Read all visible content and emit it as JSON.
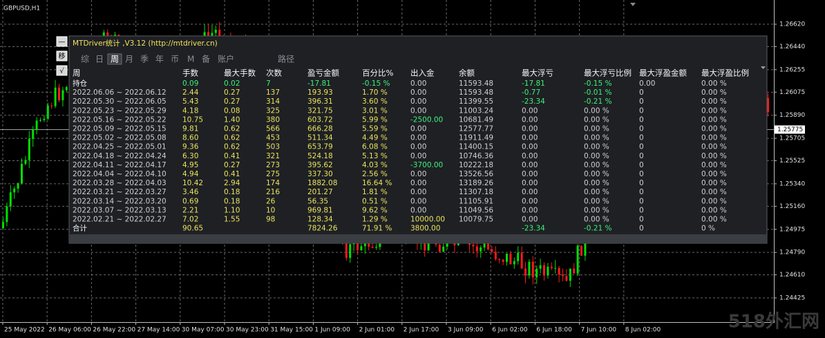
{
  "chart": {
    "symbol": "GBPUSD,H1",
    "price_ticks": [
      {
        "value": 1.2662,
        "label": "1.26620"
      },
      {
        "value": 1.2644,
        "label": "1.26440"
      },
      {
        "value": 1.26255,
        "label": "1.26255"
      },
      {
        "value": 1.26075,
        "label": "1.26075"
      },
      {
        "value": 1.2589,
        "label": "1.25890"
      },
      {
        "value": 1.25705,
        "label": "1.25705"
      },
      {
        "value": 1.25525,
        "label": "1.25525"
      },
      {
        "value": 1.2534,
        "label": "1.25340"
      },
      {
        "value": 1.2516,
        "label": "1.25160"
      },
      {
        "value": 1.24975,
        "label": "1.24975"
      },
      {
        "value": 1.2479,
        "label": "1.24790"
      },
      {
        "value": 1.2461,
        "label": "1.24610"
      },
      {
        "value": 1.24425,
        "label": "1.24425"
      }
    ],
    "current_price": {
      "value": 1.25775,
      "label": "1.25775"
    },
    "time_labels": [
      "25 May 2022",
      "26 May 06:00",
      "26 May 22:00",
      "27 May 14:00",
      "30 May 07:00",
      "30 May 23:00",
      "31 May 15:00",
      "1 Jun 09:00",
      "2 Jun 01:00",
      "2 Jun 17:00",
      "3 Jun 09:00",
      "6 Jun 02:00",
      "6 Jun 18:00",
      "7 Jun 10:00",
      "8 Jun 02:00"
    ]
  },
  "watermark": "518外汇网",
  "panel": {
    "title": "MTDriver统计 ,V3.12 (http://mtdriver.cn)",
    "buttons": [
      "—",
      "移",
      "√"
    ],
    "tabs": [
      "综",
      "日",
      "周",
      "月",
      "季",
      "年",
      "币",
      "M",
      "备",
      "账户",
      "路径"
    ],
    "selected_tab": 2,
    "headers": [
      "周",
      "手数",
      "最大手数",
      "次数",
      "盈亏金额",
      "百分比%",
      "出入金",
      "余额",
      "最大浮亏",
      "最大浮亏比例",
      "最大浮盈金额",
      "最大浮盈比例"
    ],
    "rows": [
      [
        "持仓",
        "0.09",
        "0.02",
        "7",
        "-17.81",
        "-0.15 %",
        "0.00",
        "11593.48",
        "-17.81",
        "-0.15 %",
        "0.00",
        "0.00 %"
      ],
      [
        "2022.06.06 ~ 2022.06.12",
        "2.44",
        "0.27",
        "137",
        "193.93",
        "1.70 %",
        "0.00",
        "11593.48",
        "-0.77",
        "-0.01 %",
        "0",
        "0.00 %"
      ],
      [
        "2022.05.30 ~ 2022.06.05",
        "5.43",
        "0.27",
        "314",
        "396.31",
        "3.60 %",
        "0.00",
        "11399.55",
        "-23.34",
        "-0.21 %",
        "0",
        "0.00 %"
      ],
      [
        "2022.05.23 ~ 2022.05.29",
        "4.18",
        "0.08",
        "325",
        "321.75",
        "3.01 %",
        "0.00",
        "11003.24",
        "0.00",
        "0.00 %",
        "0",
        "0.00 %"
      ],
      [
        "2022.05.16 ~ 2022.05.22",
        "10.75",
        "1.40",
        "380",
        "603.72",
        "5.99 %",
        "-2500.00",
        "10681.49",
        "0.00",
        "0.00 %",
        "0",
        "0.00 %"
      ],
      [
        "2022.05.09 ~ 2022.05.15",
        "9.81",
        "0.62",
        "566",
        "666.28",
        "5.59 %",
        "0.00",
        "12577.77",
        "0.00",
        "0.00 %",
        "0",
        "0.00 %"
      ],
      [
        "2022.05.02 ~ 2022.05.08",
        "8.60",
        "0.62",
        "453",
        "511.34",
        "4.49 %",
        "0.00",
        "11911.49",
        "0.00",
        "0.00 %",
        "0",
        "0.00 %"
      ],
      [
        "2022.04.25 ~ 2022.05.01",
        "9.36",
        "0.62",
        "503",
        "653.79",
        "6.08 %",
        "0.00",
        "11400.15",
        "0.00",
        "0.00 %",
        "0",
        "0.00 %"
      ],
      [
        "2022.04.18 ~ 2022.04.24",
        "6.30",
        "0.41",
        "321",
        "524.18",
        "5.13 %",
        "0.00",
        "10746.36",
        "0.00",
        "0.00 %",
        "0",
        "0.00 %"
      ],
      [
        "2022.04.11 ~ 2022.04.17",
        "4.95",
        "0.27",
        "273",
        "395.62",
        "4.03 %",
        "-3700.00",
        "10222.18",
        "0.00",
        "0.00 %",
        "0",
        "0.00 %"
      ],
      [
        "2022.04.04 ~ 2022.04.10",
        "4.94",
        "0.41",
        "275",
        "337.30",
        "2.56 %",
        "0.00",
        "13526.56",
        "0.00",
        "0.00 %",
        "0",
        "0.00 %"
      ],
      [
        "2022.03.28 ~ 2022.04.03",
        "10.42",
        "2.94",
        "174",
        "1882.08",
        "16.64 %",
        "0.00",
        "13189.26",
        "0.00",
        "0.00 %",
        "0",
        "0.00 %"
      ],
      [
        "2022.03.21 ~ 2022.03.27",
        "3.46",
        "0.18",
        "216",
        "201.27",
        "1.81 %",
        "0.00",
        "11307.18",
        "0.00",
        "0.00 %",
        "0",
        "0.00 %"
      ],
      [
        "2022.03.14 ~ 2022.03.20",
        "0.69",
        "0.18",
        "26",
        "56.35",
        "0.51 %",
        "0.00",
        "11105.91",
        "0.00",
        "0.00 %",
        "0",
        "0.00 %"
      ],
      [
        "2022.03.07 ~ 2022.03.13",
        "2.21",
        "1.10",
        "10",
        "969.81",
        "9.62 %",
        "0.00",
        "11049.56",
        "0.00",
        "0.00 %",
        "0",
        "0.00 %"
      ],
      [
        "2022.02.21 ~ 2022.02.27",
        "7.02",
        "1.55",
        "98",
        "128.34",
        "1.29 %",
        "10000.00",
        "10079.75",
        "0.00",
        "0.00 %",
        "0",
        "0.00 %"
      ]
    ],
    "total": [
      "合计",
      "90.65",
      null,
      null,
      "7824.26",
      "71.91 %",
      "3800.00",
      null,
      "-23.34",
      "-0.21 %",
      "0",
      "0 %"
    ]
  }
}
